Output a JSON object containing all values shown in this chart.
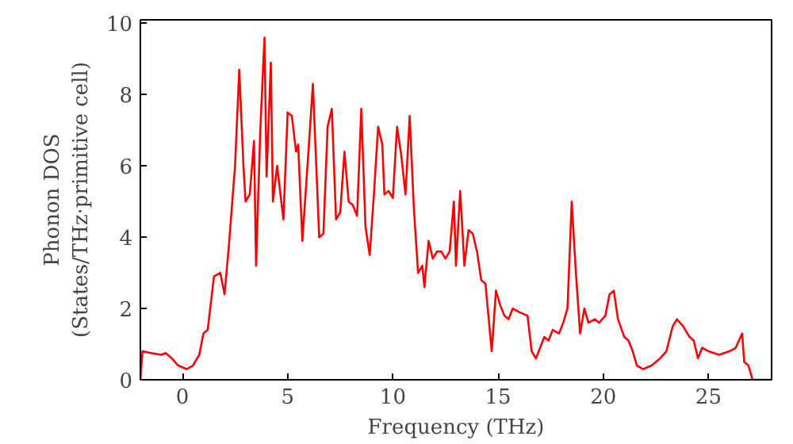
{
  "chart_data": {
    "type": "line",
    "xlabel": "Frequency (THz)",
    "ylabel": "Phonon DOS\n(States/THz·primitive cell)",
    "x": [
      -2,
      -1.9,
      -1.5,
      -1,
      -0.8,
      -0.5,
      -0.2,
      0.2,
      0.5,
      0.8,
      1.0,
      1.2,
      1.5,
      1.8,
      2.0,
      2.2,
      2.5,
      2.7,
      2.9,
      3.0,
      3.2,
      3.4,
      3.5,
      3.7,
      3.9,
      4.0,
      4.2,
      4.3,
      4.5,
      4.6,
      4.8,
      5.0,
      5.2,
      5.4,
      5.5,
      5.7,
      6.0,
      6.2,
      6.5,
      6.7,
      6.9,
      7.1,
      7.3,
      7.5,
      7.7,
      7.9,
      8.1,
      8.3,
      8.5,
      8.7,
      8.9,
      9.1,
      9.3,
      9.5,
      9.6,
      9.8,
      10.0,
      10.2,
      10.4,
      10.6,
      10.8,
      11.0,
      11.2,
      11.4,
      11.5,
      11.7,
      11.9,
      12.1,
      12.3,
      12.5,
      12.7,
      12.9,
      13.0,
      13.2,
      13.4,
      13.6,
      13.8,
      14.0,
      14.2,
      14.4,
      14.7,
      14.9,
      15.1,
      15.3,
      15.5,
      15.7,
      16.0,
      16.4,
      16.6,
      16.8,
      17.0,
      17.2,
      17.4,
      17.6,
      17.9,
      18.1,
      18.3,
      18.5,
      18.7,
      18.9,
      19.1,
      19.3,
      19.6,
      19.8,
      20.1,
      20.3,
      20.5,
      20.7,
      21.0,
      21.2,
      21.4,
      21.6,
      21.9,
      22.3,
      22.7,
      23.0,
      23.3,
      23.5,
      23.8,
      24.1,
      24.3,
      24.5,
      24.7,
      25.0,
      25.5,
      26.0,
      26.3,
      26.6,
      26.7,
      26.9,
      27.1,
      28
    ],
    "series": [
      {
        "color": "#ff0000",
        "values": [
          0.0,
          0.8,
          0.75,
          0.7,
          0.75,
          0.6,
          0.4,
          0.3,
          0.4,
          0.7,
          1.3,
          1.4,
          2.9,
          3.0,
          2.4,
          3.7,
          6.0,
          8.7,
          6.0,
          5.0,
          5.2,
          6.7,
          3.2,
          7.0,
          9.6,
          5.7,
          8.9,
          5.0,
          6.0,
          5.5,
          4.5,
          7.5,
          7.4,
          6.4,
          6.6,
          3.9,
          6.5,
          8.3,
          4.0,
          4.1,
          7.1,
          7.6,
          4.5,
          4.7,
          6.4,
          5.0,
          4.9,
          4.6,
          7.6,
          4.3,
          3.5,
          5.2,
          7.1,
          6.6,
          5.2,
          5.3,
          5.1,
          7.1,
          6.3,
          5.2,
          7.4,
          4.8,
          3.0,
          3.2,
          2.6,
          3.9,
          3.4,
          3.6,
          3.6,
          3.4,
          3.6,
          5.0,
          3.2,
          5.3,
          3.2,
          4.2,
          4.1,
          3.6,
          2.8,
          2.7,
          0.8,
          2.5,
          2.1,
          1.8,
          1.7,
          2.0,
          1.9,
          1.8,
          0.8,
          0.6,
          0.9,
          1.2,
          1.1,
          1.4,
          1.3,
          1.6,
          2.0,
          5.0,
          3.0,
          1.3,
          2.0,
          1.6,
          1.7,
          1.6,
          1.8,
          2.4,
          2.5,
          1.7,
          1.2,
          1.1,
          0.8,
          0.4,
          0.3,
          0.4,
          0.6,
          0.8,
          1.5,
          1.7,
          1.5,
          1.2,
          1.1,
          0.6,
          0.9,
          0.8,
          0.7,
          0.8,
          0.9,
          1.3,
          0.5,
          0.4,
          0.0,
          0.0
        ]
      }
    ],
    "xlim": [
      -2,
      28
    ],
    "ylim": [
      0,
      10.1
    ],
    "xticks": [
      0,
      5,
      10,
      15,
      20,
      25
    ],
    "yticks": [
      0,
      2,
      4,
      6,
      8,
      10
    ],
    "grid": false
  }
}
